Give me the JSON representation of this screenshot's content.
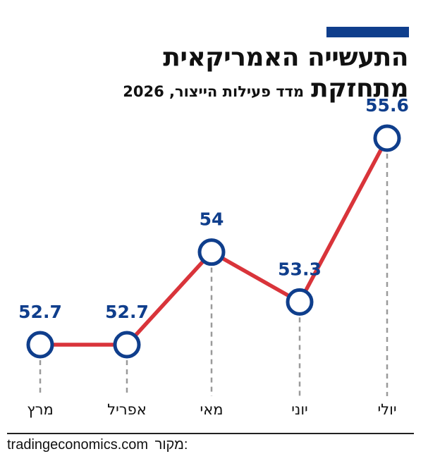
{
  "header": {
    "title_line1": "התעשייה האמריקאית",
    "title_line2": "מתחזקת",
    "subtitle": "מדד פעילות הייצור, 2026"
  },
  "source": {
    "label": "מקור:",
    "value": "tradingeconomics.com"
  },
  "colors": {
    "accent": "#0f3e8c",
    "line": "#d9343a",
    "marker_stroke": "#0f3e8c",
    "label": "#0f3e8c"
  },
  "chart_data": {
    "type": "line",
    "title": "",
    "xlabel": "",
    "ylabel": "",
    "categories": [
      "מרץ",
      "אפריל",
      "מאי",
      "יוני",
      "יולי"
    ],
    "series": [
      {
        "values": [
          52.7,
          52.7,
          54,
          53.3,
          55.6
        ]
      }
    ],
    "value_labels": [
      "52.7",
      "52.7",
      "54",
      "53.3",
      "55.6"
    ],
    "grid": false,
    "legend": "none"
  }
}
